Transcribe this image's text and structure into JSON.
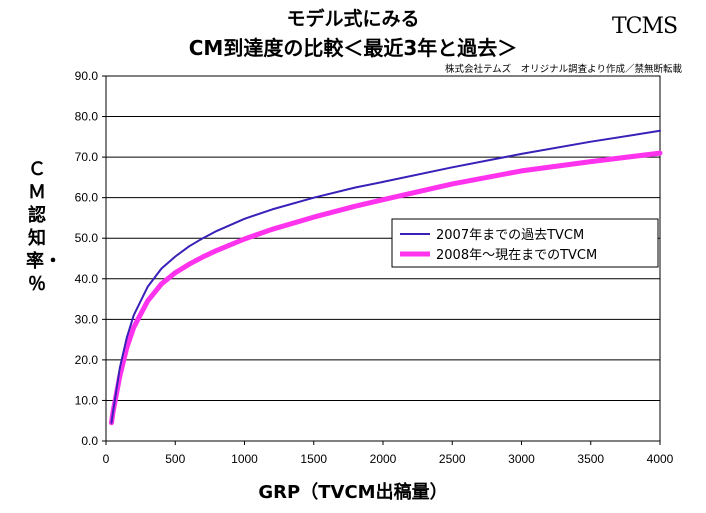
{
  "header": {
    "title_line1": "モデル式にみる",
    "title_line2": "CM到達度の比較＜最近3年と過去＞",
    "subtitle": "株式会社テムズ　オリジナル調査より作成／禁無断転載",
    "logo_text": "TCMS"
  },
  "chart_data": {
    "type": "line",
    "xlabel": "GRP（TVCM出稿量）",
    "ylabel": "ＣＭ認知率・％",
    "xlim": [
      0,
      4000
    ],
    "ylim": [
      0,
      90
    ],
    "x_ticks": [
      "0",
      "500",
      "1000",
      "1500",
      "2000",
      "2500",
      "3000",
      "3500",
      "4000"
    ],
    "y_ticks": [
      "0.0",
      "10.0",
      "20.0",
      "30.0",
      "40.0",
      "50.0",
      "60.0",
      "70.0",
      "80.0",
      "90.0"
    ],
    "grid": "horizontal",
    "legend_position": "center-right",
    "series": [
      {
        "name": "2007年までの過去TVCM",
        "color": "#3a1fb8",
        "x": [
          40,
          50,
          100,
          150,
          200,
          300,
          400,
          500,
          600,
          700,
          800,
          1000,
          1200,
          1500,
          1800,
          2000,
          2500,
          3000,
          3500,
          4000
        ],
        "y": [
          4.5,
          7.0,
          18.0,
          25.5,
          31.0,
          38.0,
          42.5,
          45.5,
          48.0,
          50.0,
          51.8,
          54.8,
          57.1,
          60.0,
          62.5,
          63.9,
          67.5,
          70.8,
          73.8,
          76.5
        ]
      },
      {
        "name": "2008年～現在までのTVCM",
        "color": "#ff33ee",
        "x": [
          40,
          50,
          100,
          150,
          200,
          300,
          400,
          500,
          600,
          700,
          800,
          1000,
          1200,
          1500,
          1800,
          2000,
          2500,
          3000,
          3500,
          4000
        ],
        "y": [
          4.5,
          7.0,
          16.0,
          23.0,
          28.0,
          34.5,
          38.7,
          41.5,
          43.6,
          45.4,
          47.0,
          49.8,
          52.2,
          55.2,
          57.9,
          59.5,
          63.4,
          66.6,
          68.9,
          71.0
        ]
      }
    ]
  }
}
